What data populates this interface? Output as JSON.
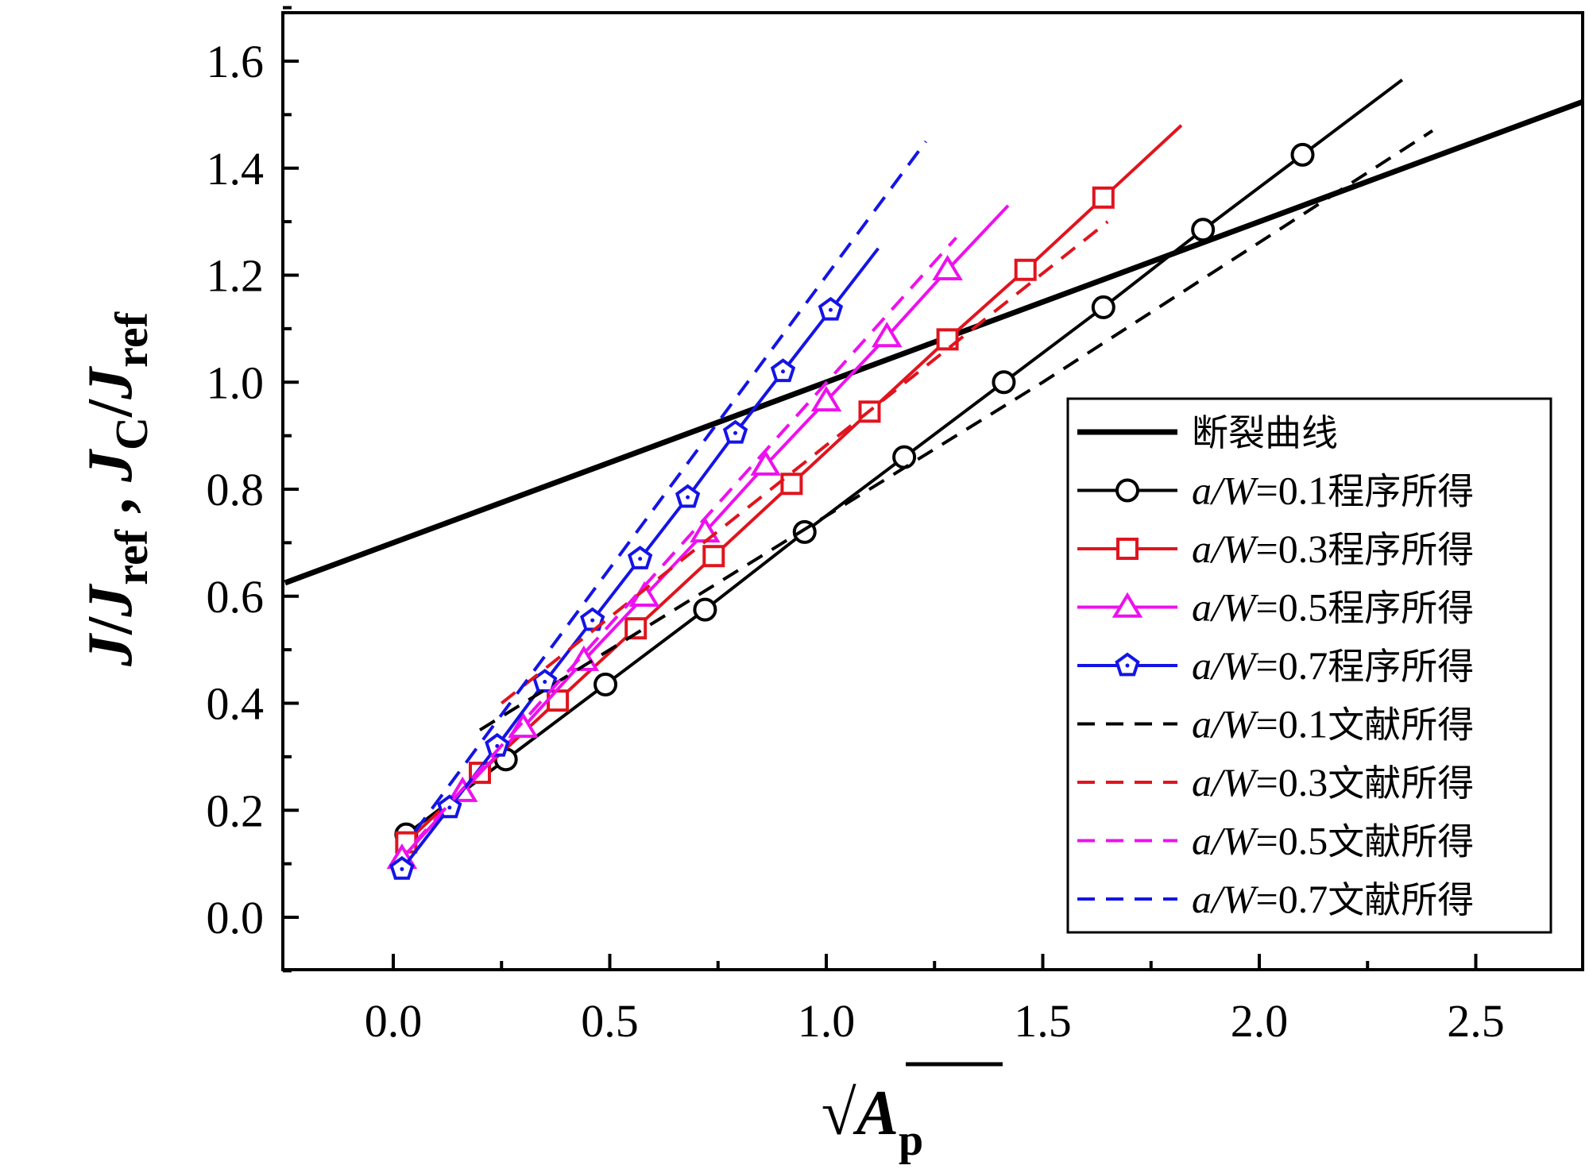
{
  "chart_data": {
    "type": "line",
    "title": "",
    "xlabel": "√Ap",
    "ylabel": "J/Jref , JC/Jref",
    "xlabel_parts": {
      "radical": "√",
      "main": "A",
      "sub": "p"
    },
    "ylabel_parts": {
      "j": "J",
      "slash": "/",
      "j2": "J",
      "ref": "ref",
      "comma": " , ",
      "j3": "J",
      "c": "C",
      "slash2": "/",
      "j4": "J",
      "ref2": "ref"
    },
    "xlim": [
      -0.25,
      2.75
    ],
    "ylim": [
      -0.1,
      1.7
    ],
    "xticks": [
      0.0,
      0.5,
      1.0,
      1.5,
      2.0,
      2.5
    ],
    "xtick_labels": [
      "0.0",
      "0.5",
      "1.0",
      "1.5",
      "2.0",
      "2.5"
    ],
    "yticks": [
      0.0,
      0.2,
      0.4,
      0.6,
      0.8,
      1.0,
      1.2,
      1.4,
      1.6
    ],
    "ytick_labels": [
      "0.0",
      "0.2",
      "0.4",
      "0.6",
      "0.8",
      "1.0",
      "1.2",
      "1.4",
      "1.6"
    ],
    "grid": false,
    "legend_position": "lower-right",
    "series": [
      {
        "name": "断裂曲线",
        "label_prefix": "",
        "label_eq": "",
        "label_suffix": "断裂曲线",
        "color": "#000000",
        "style": "solid-thick",
        "marker": "none",
        "x": [
          -0.25,
          2.75
        ],
        "y": [
          0.625,
          1.525
        ]
      },
      {
        "name": "a/W=0.1程序所得",
        "label_prefix": "a/W",
        "label_eq": "=0.1",
        "label_suffix": "程序所得",
        "color": "#000000",
        "style": "solid",
        "marker": "circle",
        "x": [
          0.03,
          0.26,
          0.49,
          0.72,
          0.95,
          1.18,
          1.41,
          1.64,
          1.87,
          2.1,
          2.33
        ],
        "y": [
          0.155,
          0.295,
          0.435,
          0.575,
          0.72,
          0.86,
          1.0,
          1.14,
          1.285,
          1.425,
          1.565
        ],
        "marker_points": 10
      },
      {
        "name": "a/W=0.3程序所得",
        "label_prefix": "a/W",
        "label_eq": "=0.3",
        "label_suffix": "程序所得",
        "color": "#e0141e",
        "style": "solid",
        "marker": "square",
        "x": [
          0.03,
          0.2,
          0.38,
          0.56,
          0.74,
          0.92,
          1.1,
          1.28,
          1.46,
          1.64,
          1.82
        ],
        "y": [
          0.14,
          0.27,
          0.405,
          0.54,
          0.675,
          0.81,
          0.945,
          1.08,
          1.21,
          1.345,
          1.48
        ],
        "marker_points": 10
      },
      {
        "name": "a/W=0.5程序所得",
        "label_prefix": "a/W",
        "label_eq": "=0.5",
        "label_suffix": "程序所得",
        "color": "#ee10ee",
        "style": "solid",
        "marker": "triangle",
        "x": [
          0.02,
          0.16,
          0.3,
          0.44,
          0.58,
          0.72,
          0.86,
          1.0,
          1.14,
          1.28,
          1.42
        ],
        "y": [
          0.11,
          0.235,
          0.355,
          0.48,
          0.6,
          0.72,
          0.845,
          0.965,
          1.085,
          1.21,
          1.33
        ],
        "marker_points": 10
      },
      {
        "name": "a/W=0.7程序所得",
        "label_prefix": "a/W",
        "label_eq": "=0.7",
        "label_suffix": "程序所得",
        "color": "#1414e6",
        "style": "solid",
        "marker": "pentagon",
        "x": [
          0.02,
          0.13,
          0.24,
          0.35,
          0.46,
          0.57,
          0.68,
          0.79,
          0.9,
          1.01,
          1.12
        ],
        "y": [
          0.09,
          0.205,
          0.32,
          0.44,
          0.555,
          0.67,
          0.785,
          0.905,
          1.02,
          1.135,
          1.25
        ],
        "marker_points": 10
      },
      {
        "name": "a/W=0.1文献所得",
        "label_prefix": "a/W",
        "label_eq": "=0.1",
        "label_suffix": "文献所得",
        "color": "#000000",
        "style": "dashed",
        "marker": "none",
        "x": [
          0.2,
          1.0,
          1.5,
          2.4
        ],
        "y": [
          0.35,
          0.75,
          1.0,
          1.47
        ]
      },
      {
        "name": "a/W=0.3文献所得",
        "label_prefix": "a/W",
        "label_eq": "=0.3",
        "label_suffix": "文献所得",
        "color": "#e0141e",
        "style": "dashed",
        "marker": "none",
        "x": [
          0.25,
          1.65
        ],
        "y": [
          0.4,
          1.3
        ]
      },
      {
        "name": "a/W=0.5文献所得",
        "label_prefix": "a/W",
        "label_eq": "=0.5",
        "label_suffix": "文献所得",
        "color": "#ee10ee",
        "style": "dashed",
        "marker": "none",
        "x": [
          0.05,
          1.3
        ],
        "y": [
          0.14,
          1.27
        ]
      },
      {
        "name": "a/W=0.7文献所得",
        "label_prefix": "a/W",
        "label_eq": "=0.7",
        "label_suffix": "文献所得",
        "color": "#1414e6",
        "style": "dashed",
        "marker": "none",
        "x": [
          0.05,
          1.23
        ],
        "y": [
          0.16,
          1.45
        ]
      }
    ]
  }
}
